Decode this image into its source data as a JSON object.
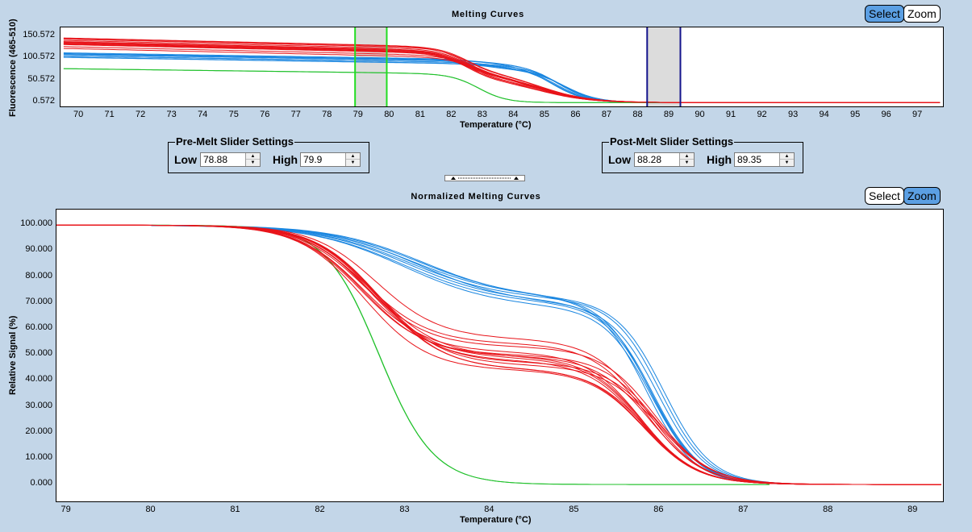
{
  "top_panel": {
    "title": "Melting Curves",
    "select_label": "Select",
    "zoom_label": "Zoom",
    "active_mode": "select"
  },
  "pre_melt": {
    "title": "Pre-Melt Slider Settings",
    "low_label": "Low",
    "low_value": "78.88",
    "high_label": "High",
    "high_value": "79.9"
  },
  "post_melt": {
    "title": "Post-Melt Slider Settings",
    "low_label": "Low",
    "low_value": "88.28",
    "high_label": "High",
    "high_value": "89.35"
  },
  "bottom_panel": {
    "title": "Normalized Melting Curves",
    "select_label": "Select",
    "zoom_label": "Zoom",
    "active_mode": "zoom"
  },
  "colors": {
    "red": "#e8141a",
    "blue": "#1a86e0",
    "green": "#1fc02a",
    "pre_slider": "#22dd22",
    "post_slider": "#14148c",
    "slider_fill": "#dcdcdc",
    "active_button": "#5b9fe3"
  },
  "chart_data": [
    {
      "type": "line",
      "title": "Melting Curves",
      "xlabel": "Temperature (°C)",
      "ylabel": "Fluorescence (465-510)",
      "xlim": [
        69.4,
        97.8
      ],
      "ylim": [
        -8,
        170
      ],
      "x_ticks": [
        "70",
        "71",
        "72",
        "73",
        "74",
        "75",
        "76",
        "77",
        "78",
        "79",
        "80",
        "81",
        "82",
        "83",
        "84",
        "85",
        "86",
        "87",
        "88",
        "89",
        "90",
        "91",
        "92",
        "93",
        "94",
        "95",
        "96",
        "97"
      ],
      "y_ticks": [
        "150.572",
        "100.572",
        "50.572",
        "0.572"
      ],
      "y_tick_values": [
        150.572,
        100.572,
        50.572,
        0.572
      ],
      "x_start": 69.5,
      "x_end": 97.7,
      "pre_slider": {
        "low": 78.88,
        "high": 79.9
      },
      "post_slider": {
        "low": 88.28,
        "high": 89.35
      },
      "groups": [
        {
          "name": "red",
          "count": 14,
          "tm": 84.9,
          "width": 0.8,
          "start_min": 120,
          "start_max": 146,
          "slope": 1.6,
          "mid_min": 0.38,
          "mid_max": 0.55
        },
        {
          "name": "blue",
          "count": 8,
          "tm": 85.4,
          "width": 0.55,
          "start_min": 101,
          "start_max": 118,
          "slope": 1.1,
          "mid_min": 0.05,
          "mid_max": 0.12
        },
        {
          "name": "green",
          "count": 2,
          "tm": 82.9,
          "width": 0.45,
          "start_min": 76,
          "start_max": 79,
          "slope": 0.9,
          "mid_min": 0.0,
          "mid_max": 0.0
        }
      ]
    },
    {
      "type": "line",
      "title": "Normalized Melting Curves",
      "xlabel": "Temperature (°C)",
      "ylabel": "Relative Signal (%)",
      "xlim": [
        78.88,
        89.35
      ],
      "ylim": [
        -6.5,
        106
      ],
      "x_ticks": [
        "79",
        "80",
        "81",
        "82",
        "83",
        "84",
        "85",
        "86",
        "87",
        "88",
        "89"
      ],
      "y_ticks": [
        "100.000",
        "90.000",
        "80.000",
        "70.000",
        "60.000",
        "50.000",
        "40.000",
        "30.000",
        "20.000",
        "10.000",
        "0.000"
      ],
      "y_tick_values": [
        100,
        90,
        80,
        70,
        60,
        50,
        40,
        30,
        20,
        10,
        0
      ],
      "groups": [
        {
          "name": "red",
          "count": 14,
          "t1": 82.6,
          "w1": 0.38,
          "t2": 85.9,
          "w2": 0.32,
          "mid_min": 0.44,
          "mid_max": 0.57
        },
        {
          "name": "blue",
          "count": 8,
          "t1": 83.1,
          "w1": 0.55,
          "t2": 85.95,
          "w2": 0.28,
          "mid_min": 0.66,
          "mid_max": 0.72
        },
        {
          "name": "green",
          "count": 2,
          "t1": 82.7,
          "w1": 0.32,
          "t2": 82.7,
          "w2": 0.32,
          "mid_min": 0.0,
          "mid_max": 0.0
        }
      ]
    }
  ]
}
